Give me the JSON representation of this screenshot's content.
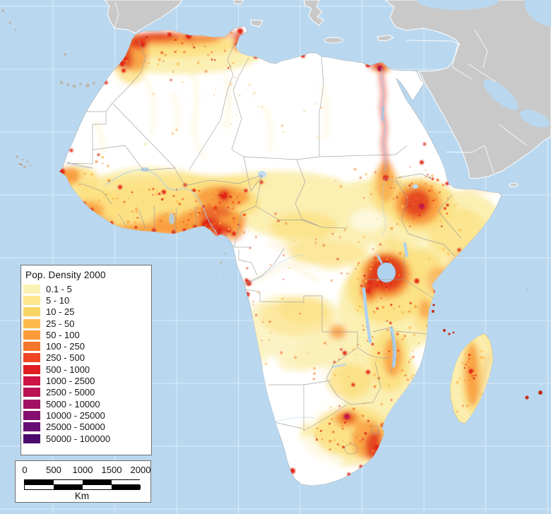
{
  "legend": {
    "title": "Pop. Density 2000",
    "entries": [
      {
        "label": "0.1 - 5",
        "color": "#FBF2B4"
      },
      {
        "label": "5 - 10",
        "color": "#FCE78F"
      },
      {
        "label": "10 - 25",
        "color": "#FBD563"
      },
      {
        "label": "25 - 50",
        "color": "#FDBB4B"
      },
      {
        "label": "50 - 100",
        "color": "#FB9B3A"
      },
      {
        "label": "100 - 250",
        "color": "#F4752C"
      },
      {
        "label": "250 - 500",
        "color": "#F04523"
      },
      {
        "label": "500 - 1000",
        "color": "#E01E24"
      },
      {
        "label": "1000 - 2500",
        "color": "#CD1347"
      },
      {
        "label": "2500 - 5000",
        "color": "#BA1253"
      },
      {
        "label": "5000 - 10000",
        "color": "#A01162"
      },
      {
        "label": "10000 - 25000",
        "color": "#840F6E"
      },
      {
        "label": "25000 - 50000",
        "color": "#660D72"
      },
      {
        "label": "50000 - 100000",
        "color": "#4C0A6E"
      }
    ]
  },
  "scale_bar": {
    "tick_labels": [
      "0",
      "500",
      "1000",
      "1500",
      "2000"
    ],
    "unit_label": "Km",
    "segment_colors_top": [
      "#000000",
      "#ffffff",
      "#000000",
      "#ffffff"
    ],
    "segment_colors_bottom": [
      "#ffffff",
      "#000000",
      "#ffffff",
      "#000000"
    ]
  },
  "map": {
    "region": "Africa population density raster",
    "ocean_color": "#B9D8F0",
    "graticule_color": "#DCEAF8",
    "other_land_color": "#C9C9C9",
    "other_land_border_color": "#FFFFFF",
    "africa_base_color": "#FFFFFF",
    "country_border_color": "#9B9B9B",
    "lake_color": "#AFD2EE"
  }
}
